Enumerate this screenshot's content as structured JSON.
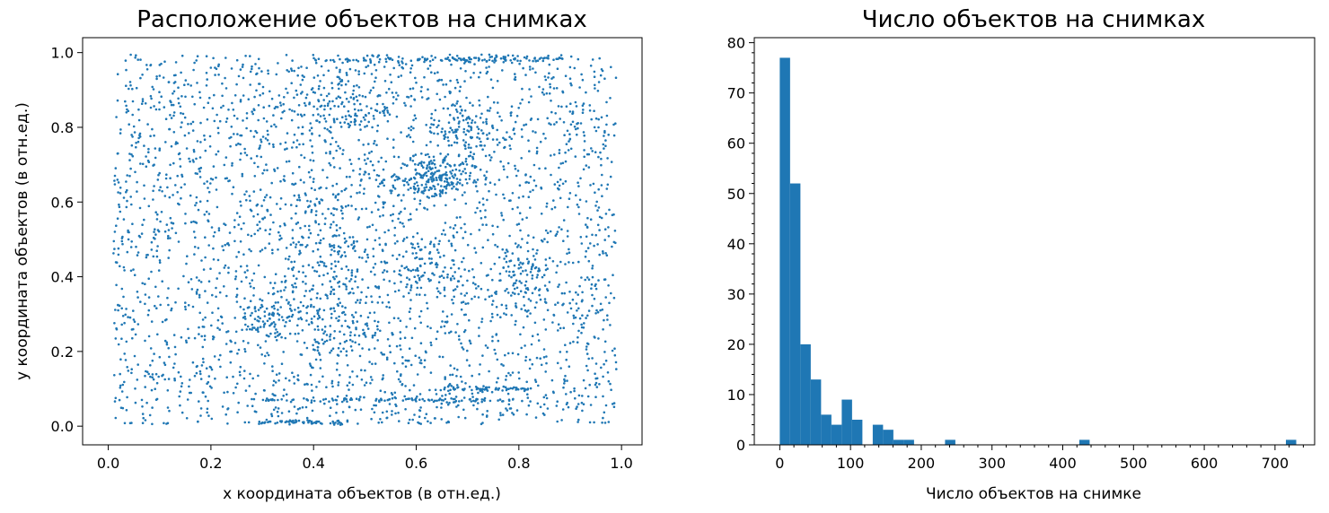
{
  "chart_data": [
    {
      "type": "scatter",
      "title": "Расположение объектов на снимках",
      "xlabel": "x координата объектов (в отн.ед.)",
      "ylabel": "y координата объектов (в отн.ед.)",
      "xlim": [
        -0.05,
        1.04
      ],
      "ylim": [
        -0.05,
        1.04
      ],
      "xticks": [
        0.0,
        0.2,
        0.4,
        0.6,
        0.8,
        1.0
      ],
      "yticks": [
        0.0,
        0.2,
        0.4,
        0.6,
        0.8,
        1.0
      ],
      "xtick_labels": [
        "0.0",
        "0.2",
        "0.4",
        "0.6",
        "0.8",
        "1.0"
      ],
      "ytick_labels": [
        "0.0",
        "0.2",
        "0.4",
        "0.6",
        "0.8",
        "1.0"
      ],
      "color": "#1f77b4",
      "point_count_estimate": 4000,
      "distribution": "roughly uniform over [0,1]x[0,1], with denser clusters near (0.63,0.66), (0.45,0.85), (0.7,0.78), (0.35,0.3) and horizontal streaks near y≈0.01, 0.07, 0.1, 0.98",
      "grid": false
    },
    {
      "type": "bar",
      "subtype": "histogram",
      "title": "Число объектов на снимках",
      "xlabel": "Число объектов на снимке",
      "ylabel": "",
      "xlim": [
        -36,
        756
      ],
      "ylim": [
        0,
        81
      ],
      "xticks": [
        0,
        100,
        200,
        300,
        400,
        500,
        600,
        700
      ],
      "yticks": [
        0,
        10,
        20,
        30,
        40,
        50,
        60,
        70,
        80
      ],
      "xtick_labels": [
        "0",
        "100",
        "200",
        "300",
        "400",
        "500",
        "600",
        "700"
      ],
      "ytick_labels": [
        "0",
        "10",
        "20",
        "30",
        "40",
        "50",
        "60",
        "70",
        "80"
      ],
      "bin_width": 14.6,
      "bin_start": 0,
      "counts": [
        77,
        52,
        20,
        13,
        6,
        4,
        9,
        5,
        0,
        4,
        3,
        1,
        1,
        0,
        0,
        0,
        1,
        0,
        0,
        0,
        0,
        0,
        0,
        0,
        0,
        0,
        0,
        0,
        0,
        1,
        0,
        0,
        0,
        0,
        0,
        0,
        0,
        0,
        0,
        0,
        0,
        0,
        0,
        0,
        0,
        0,
        0,
        0,
        0,
        1
      ],
      "color": "#1f77b4",
      "grid": false
    }
  ]
}
